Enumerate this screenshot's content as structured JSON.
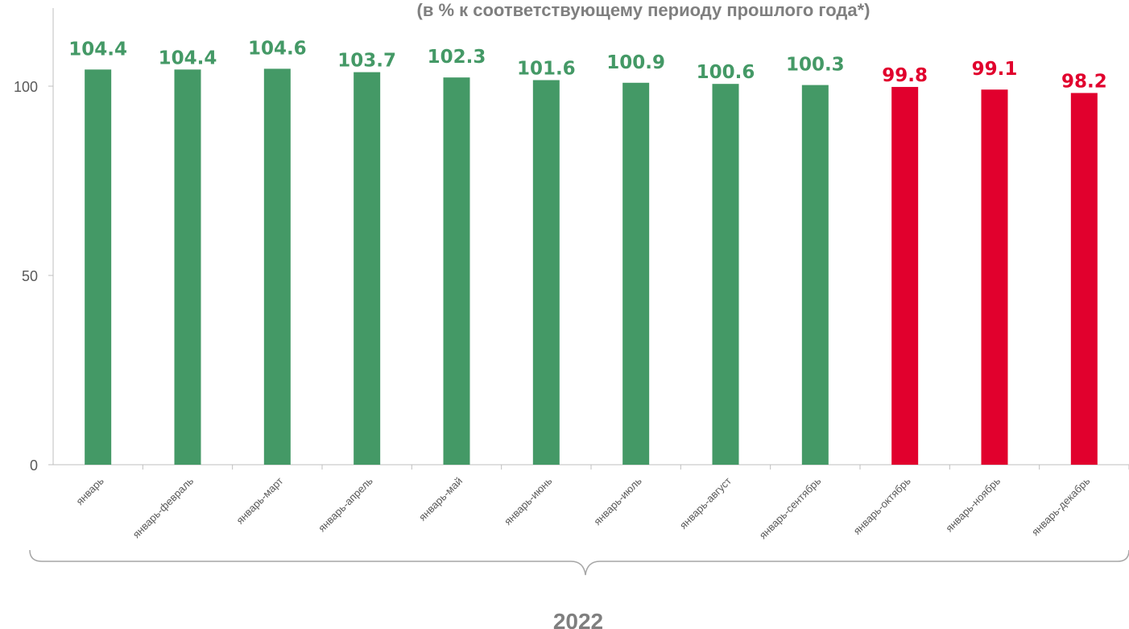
{
  "chart_data": {
    "type": "bar",
    "title": "(в % к соответствующему периоду  прошлого года*)",
    "categories": [
      "январь",
      "январь-февраль",
      "январь-март",
      "январь-апрель",
      "январь-май",
      "январь-июнь",
      "январь-июль",
      "январь-август",
      "январь-сентябрь",
      "январь-октябрь",
      "январь-ноябрь",
      "январь-декабрь"
    ],
    "values": [
      104.4,
      104.4,
      104.6,
      103.7,
      102.3,
      101.6,
      100.9,
      100.6,
      100.3,
      99.8,
      99.1,
      98.2
    ],
    "data_labels": [
      "104.4",
      "104.4",
      "104.6",
      "103.7",
      "102.3",
      "101.6",
      "100.9",
      "100.6",
      "100.3",
      "99.8",
      "99.1",
      "98.2"
    ],
    "ylim": [
      0,
      120
    ],
    "yticks": [
      0,
      50,
      100
    ],
    "ytick_labels": [
      "0",
      "50",
      "100"
    ],
    "group_label": "2022",
    "grid": false,
    "legend": "none",
    "colors": {
      "above_100": "#449966",
      "below_100": "#e1002d"
    }
  }
}
